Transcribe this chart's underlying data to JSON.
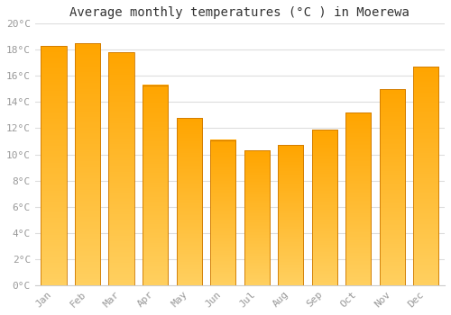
{
  "title": "Average monthly temperatures (°C ) in Moerewa",
  "months": [
    "Jan",
    "Feb",
    "Mar",
    "Apr",
    "May",
    "Jun",
    "Jul",
    "Aug",
    "Sep",
    "Oct",
    "Nov",
    "Dec"
  ],
  "values": [
    18.3,
    18.5,
    17.8,
    15.3,
    12.8,
    11.1,
    10.3,
    10.7,
    11.9,
    13.2,
    15.0,
    16.7
  ],
  "bar_color_top": "#FFA500",
  "bar_color_bottom": "#FFD060",
  "bar_edge_color": "#CC7700",
  "ylim": [
    0,
    20
  ],
  "ytick_step": 2,
  "background_color": "#FFFFFF",
  "grid_color": "#DDDDDD",
  "title_fontsize": 10,
  "tick_fontsize": 8,
  "tick_label_color": "#999999"
}
